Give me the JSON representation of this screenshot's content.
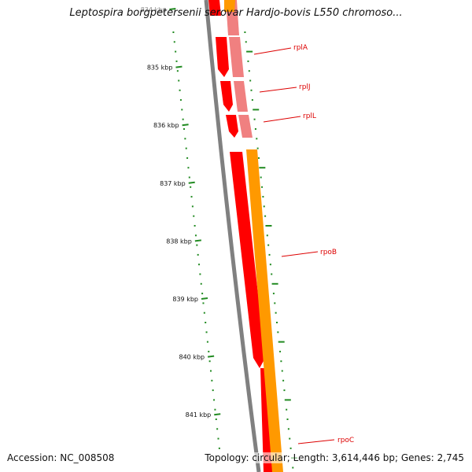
{
  "title": "Leptospira borgpetersenii serovar Hardjo-bovis L550 chromoso...",
  "accession": "Accession: NC_008508",
  "summary": "Topology: circular; Length: 3,614,446 bp; Genes: 2,745",
  "colors": {
    "backbone": "#808080",
    "cds": "#ff0000",
    "cds_light": "#f08080",
    "rna": "#ff9900",
    "tick": "#228b22",
    "label_line": "#dd0000"
  },
  "ticks": [
    {
      "label": "834 kbp",
      "kbp": 834
    },
    {
      "label": "835 kbp",
      "kbp": 835
    },
    {
      "label": "836 kbp",
      "kbp": 836
    },
    {
      "label": "837 kbp",
      "kbp": 837
    },
    {
      "label": "838 kbp",
      "kbp": 838
    },
    {
      "label": "839 kbp",
      "kbp": 839
    },
    {
      "label": "840 kbp",
      "kbp": 840
    },
    {
      "label": "841 kbp",
      "kbp": 841
    }
  ],
  "genes": [
    {
      "name": "rplA"
    },
    {
      "name": "rplJ"
    },
    {
      "name": "rplL"
    },
    {
      "name": "rpoB"
    },
    {
      "name": "rpoC"
    }
  ]
}
